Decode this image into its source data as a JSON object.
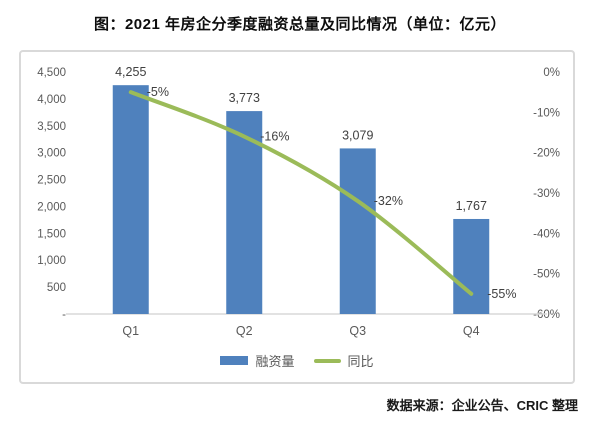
{
  "title": "图：2021 年房企分季度融资总量及同比情况（单位：亿元）",
  "source": "数据来源：企业公告、CRIC 整理",
  "legend": {
    "bar_label": "融资量",
    "line_label": "同比"
  },
  "colors": {
    "bar": "#4f81bd",
    "line": "#9bbb59",
    "tick_text": "#595959",
    "data_label": "#404040",
    "axis_line": "#d9d9d9",
    "panel_border": "#d9d9d9"
  },
  "chart_data": {
    "type": "bar",
    "subtype": "bar+line combo",
    "title": "图：2021 年房企分季度融资总量及同比情况（单位：亿元）",
    "categories": [
      "Q1",
      "Q2",
      "Q3",
      "Q4"
    ],
    "series": [
      {
        "name": "融资量",
        "type": "bar",
        "axis": "left",
        "values": [
          4255,
          3773,
          3079,
          1767
        ],
        "labels": [
          "4,255",
          "3,773",
          "3,079",
          "1,767"
        ]
      },
      {
        "name": "同比",
        "type": "line",
        "axis": "right",
        "values": [
          -5,
          -16,
          -32,
          -55
        ],
        "labels": [
          "-5%",
          "-16%",
          "-32%",
          "-55%"
        ]
      }
    ],
    "left_axis": {
      "min": 0,
      "max": 4500,
      "step": 500,
      "tick_labels": [
        "4,500",
        "4,000",
        "3,500",
        "3,000",
        "2,500",
        "2,000",
        "1,500",
        "1,000",
        "500",
        "-"
      ]
    },
    "right_axis": {
      "min": -60,
      "max": 0,
      "step": -10,
      "tick_labels": [
        "0%",
        "-10%",
        "-20%",
        "-30%",
        "-40%",
        "-50%",
        "-60%"
      ]
    },
    "grid": false,
    "legend_position": "bottom"
  }
}
